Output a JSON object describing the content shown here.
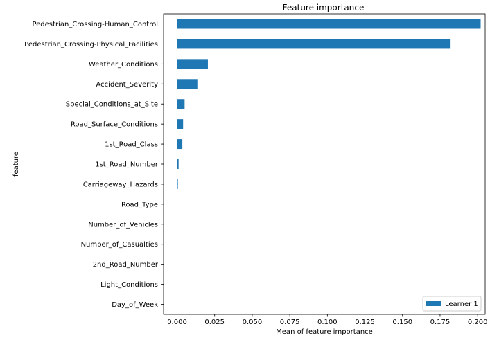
{
  "chart_data": {
    "type": "bar",
    "orientation": "horizontal",
    "title": "Feature importance",
    "xlabel": "Mean of feature importance",
    "ylabel": "feature",
    "xlim": [
      -0.009,
      0.205
    ],
    "xticks": [
      0.0,
      0.025,
      0.05,
      0.075,
      0.1,
      0.125,
      0.15,
      0.175,
      0.2
    ],
    "xtick_labels": [
      "0.000",
      "0.025",
      "0.050",
      "0.075",
      "0.100",
      "0.125",
      "0.150",
      "0.175",
      "0.200"
    ],
    "grid": false,
    "legend_position": "bottom-right",
    "categories": [
      "Pedestrian_Crossing-Human_Control",
      "Pedestrian_Crossing-Physical_Facilities",
      "Weather_Conditions",
      "Accident_Severity",
      "Special_Conditions_at_Site",
      "Road_Surface_Conditions",
      "1st_Road_Class",
      "1st_Road_Number",
      "Carriageway_Hazards",
      "Road_Type",
      "Number_of_Vehicles",
      "Number_of_Casualties",
      "2nd_Road_Number",
      "Light_Conditions",
      "Day_of_Week"
    ],
    "series": [
      {
        "name": "Learner 1",
        "color": "#1f77b4",
        "values": [
          0.202,
          0.182,
          0.0205,
          0.0135,
          0.005,
          0.004,
          0.0035,
          0.001,
          0.0005,
          0,
          0,
          0,
          0,
          0,
          0
        ]
      }
    ]
  }
}
